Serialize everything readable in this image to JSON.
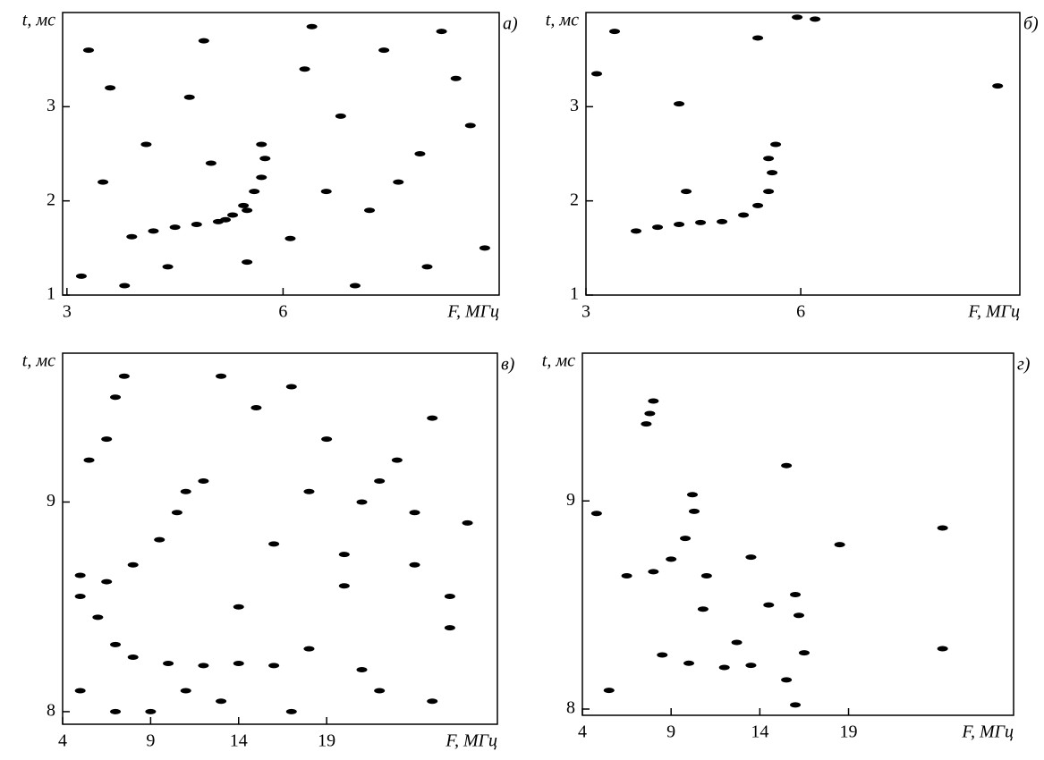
{
  "chart_data": [
    {
      "type": "scatter",
      "title": "а)",
      "xlabel": "F, МГц",
      "ylabel": "t, мс",
      "color": "#000000",
      "xlim": [
        2.94,
        9.0
      ],
      "ylim": [
        1,
        4.0
      ],
      "xticks": [
        3,
        6
      ],
      "yticks": [
        1,
        2,
        3
      ],
      "x": [
        3.9,
        4.2,
        4.5,
        4.8,
        5.1,
        5.3,
        5.45,
        5.6,
        5.7,
        5.75,
        5.7,
        5.2,
        5.5,
        3.3,
        3.6,
        4.1,
        4.7,
        5.0,
        6.3,
        6.8,
        7.2,
        7.9,
        8.4,
        8.8,
        3.2,
        4.4,
        6.1,
        7.0,
        7.6,
        8.2,
        3.5,
        4.9,
        6.6,
        7.4,
        8.6,
        3.8,
        5.5,
        6.4,
        8.0
      ],
      "values": [
        1.62,
        1.68,
        1.72,
        1.75,
        1.78,
        1.85,
        1.95,
        2.1,
        2.25,
        2.45,
        2.6,
        1.8,
        1.9,
        3.6,
        3.2,
        2.6,
        3.1,
        2.4,
        3.4,
        2.9,
        1.9,
        2.5,
        3.3,
        1.5,
        1.2,
        1.3,
        1.6,
        1.1,
        2.2,
        3.8,
        2.2,
        3.7,
        2.1,
        3.6,
        2.8,
        1.1,
        1.35,
        3.85,
        1.3
      ]
    },
    {
      "type": "scatter",
      "title": "б)",
      "xlabel": "F, МГц",
      "ylabel": "t, мс",
      "color": "#000000",
      "xlim": [
        3,
        9.06
      ],
      "ylim": [
        1,
        4.0
      ],
      "xticks": [
        3,
        6
      ],
      "yticks": [
        1,
        2,
        3
      ],
      "x": [
        3.7,
        4.0,
        4.3,
        4.6,
        4.9,
        5.2,
        5.4,
        5.55,
        5.6,
        5.55,
        5.65,
        3.4,
        3.15,
        4.3,
        5.4,
        5.95,
        6.2,
        8.75,
        4.4
      ],
      "values": [
        1.68,
        1.72,
        1.75,
        1.77,
        1.78,
        1.85,
        1.95,
        2.1,
        2.3,
        2.45,
        2.6,
        3.8,
        3.35,
        3.03,
        3.73,
        3.95,
        3.93,
        3.22,
        2.1
      ]
    },
    {
      "type": "scatter",
      "title": "в)",
      "xlabel": "F, МГц",
      "ylabel": "t, мс",
      "color": "#000000",
      "xlim": [
        4,
        28.7
      ],
      "ylim": [
        7.94,
        9.71
      ],
      "xticks": [
        4,
        9,
        14,
        19
      ],
      "yticks": [
        8,
        9
      ],
      "x": [
        5,
        6,
        7,
        8,
        10,
        12,
        14,
        16,
        5,
        6.5,
        8,
        9.5,
        10.5,
        11,
        6.5,
        7.0,
        7.5,
        5.5,
        13,
        15,
        17,
        19,
        21,
        23,
        25,
        27,
        12,
        16,
        20,
        24,
        26,
        14,
        18,
        22,
        9,
        11,
        13,
        17,
        21,
        25,
        18,
        22,
        26,
        20,
        24,
        5,
        7
      ],
      "values": [
        8.55,
        8.45,
        8.32,
        8.26,
        8.23,
        8.22,
        8.23,
        8.22,
        8.65,
        8.62,
        8.7,
        8.82,
        8.95,
        9.05,
        9.3,
        9.5,
        9.6,
        9.2,
        9.6,
        9.45,
        9.55,
        9.3,
        9.0,
        9.2,
        9.4,
        8.9,
        9.1,
        8.8,
        8.6,
        8.7,
        8.4,
        8.5,
        8.3,
        8.1,
        8.0,
        8.1,
        8.05,
        8.0,
        8.2,
        8.05,
        9.05,
        9.1,
        8.55,
        8.75,
        8.95,
        8.1,
        8.0
      ]
    },
    {
      "type": "scatter",
      "title": "г)",
      "xlabel": "F, МГц",
      "ylabel": "t, мс",
      "color": "#000000",
      "xlim": [
        4,
        28.3
      ],
      "ylim": [
        7.97,
        9.71
      ],
      "xticks": [
        4,
        9,
        14,
        19
      ],
      "yticks": [
        8,
        9
      ],
      "x": [
        6.5,
        8,
        9,
        9.8,
        10.3,
        10.2,
        8.5,
        10,
        12,
        13.5,
        16.5,
        5.5,
        7.8,
        8.0,
        7.6,
        15.5,
        13.5,
        11,
        10.8,
        18.5,
        14.5,
        16,
        16.2,
        15.5,
        16,
        12.7,
        24.3,
        24.3,
        4.8
      ],
      "values": [
        8.64,
        8.66,
        8.72,
        8.82,
        8.95,
        9.03,
        8.26,
        8.22,
        8.2,
        8.21,
        8.27,
        8.09,
        9.42,
        9.48,
        9.37,
        9.17,
        8.73,
        8.64,
        8.48,
        8.79,
        8.5,
        8.55,
        8.45,
        8.14,
        8.02,
        8.32,
        8.87,
        8.29,
        8.94
      ]
    }
  ]
}
